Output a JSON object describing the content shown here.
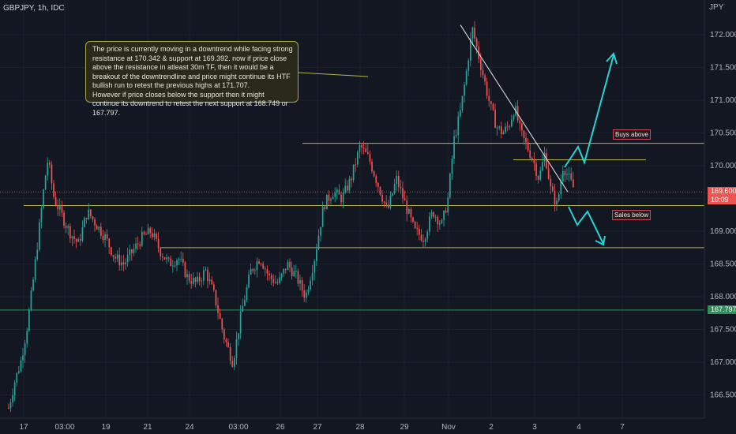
{
  "symbol_label": "GBPJPY, 1h, IDC",
  "currency": "JPY",
  "annotation": "The price is currently moving in a downtrend while facing strong resistance at 170.342 & support at 169.392. now if price close above the resistance in atleast 30m TF, then it would be a breakout of the downtrendline and price might continue its HTF bullish run to retest the previous highs at 171.707.\nHowever if price closes below the support then it might continue its downtrend to retest the next support at 168.749 or 167.797.",
  "buys_label": "Buys above",
  "sales_label": "Sales below",
  "current_price": "169.600",
  "countdown": "10:09",
  "support_badge": "167.797",
  "colors": {
    "up": "#26a69a",
    "down": "#ef5350",
    "level": "#b5b54a",
    "arrow": "#26d4d4",
    "green_line": "#2f8f5b"
  },
  "chart_data": {
    "type": "candlestick",
    "y_axis": {
      "ticks": [
        "172.000",
        "171.500",
        "171.000",
        "170.500",
        "170.000",
        "169.500",
        "169.000",
        "168.500",
        "168.000",
        "167.500",
        "167.000",
        "166.500"
      ],
      "range": [
        166.2,
        172.3
      ]
    },
    "x_axis": {
      "ticks": [
        "17",
        "03:00",
        "19",
        "21",
        "24",
        "03:00",
        "26",
        "27",
        "28",
        "29",
        "Nov",
        "2",
        "3",
        "4",
        "7"
      ]
    },
    "levels": [
      170.342,
      169.392,
      170.09,
      168.749,
      167.797
    ],
    "downtrend_line": {
      "from": 172.15,
      "to": 169.6
    },
    "current_price": 169.6,
    "path": [
      [
        0,
        166.3
      ],
      [
        4,
        166.7
      ],
      [
        8,
        167.0
      ],
      [
        12,
        167.5
      ],
      [
        16,
        168.2
      ],
      [
        20,
        169.0
      ],
      [
        24,
        169.8
      ],
      [
        26,
        170.1
      ],
      [
        30,
        169.5
      ],
      [
        34,
        169.3
      ],
      [
        40,
        169.0
      ],
      [
        46,
        168.8
      ],
      [
        52,
        169.3
      ],
      [
        58,
        169.1
      ],
      [
        64,
        168.9
      ],
      [
        70,
        168.6
      ],
      [
        76,
        168.5
      ],
      [
        82,
        168.7
      ],
      [
        88,
        168.9
      ],
      [
        94,
        169.0
      ],
      [
        100,
        168.7
      ],
      [
        106,
        168.5
      ],
      [
        112,
        168.6
      ],
      [
        118,
        168.3
      ],
      [
        124,
        168.2
      ],
      [
        130,
        168.4
      ],
      [
        136,
        168.0
      ],
      [
        142,
        167.4
      ],
      [
        148,
        167.0
      ],
      [
        154,
        167.8
      ],
      [
        160,
        168.4
      ],
      [
        166,
        168.6
      ],
      [
        172,
        168.3
      ],
      [
        178,
        168.2
      ],
      [
        184,
        168.5
      ],
      [
        190,
        168.3
      ],
      [
        196,
        168.0
      ],
      [
        202,
        168.6
      ],
      [
        208,
        169.4
      ],
      [
        214,
        169.6
      ],
      [
        220,
        169.5
      ],
      [
        226,
        169.8
      ],
      [
        232,
        170.3
      ],
      [
        238,
        170.1
      ],
      [
        244,
        169.7
      ],
      [
        250,
        169.3
      ],
      [
        256,
        169.8
      ],
      [
        262,
        169.4
      ],
      [
        268,
        169.0
      ],
      [
        274,
        168.9
      ],
      [
        280,
        169.3
      ],
      [
        286,
        169.1
      ],
      [
        290,
        169.5
      ],
      [
        294,
        170.4
      ],
      [
        298,
        170.8
      ],
      [
        302,
        171.4
      ],
      [
        306,
        172.1
      ],
      [
        310,
        171.7
      ],
      [
        314,
        171.3
      ],
      [
        318,
        170.9
      ],
      [
        322,
        170.6
      ],
      [
        326,
        170.5
      ],
      [
        330,
        170.6
      ],
      [
        334,
        170.9
      ],
      [
        338,
        170.5
      ],
      [
        342,
        170.3
      ],
      [
        346,
        170.1
      ],
      [
        350,
        169.8
      ],
      [
        354,
        170.2
      ],
      [
        358,
        169.6
      ],
      [
        362,
        169.4
      ],
      [
        366,
        170.0
      ],
      [
        370,
        169.8
      ],
      [
        374,
        169.6
      ]
    ]
  }
}
